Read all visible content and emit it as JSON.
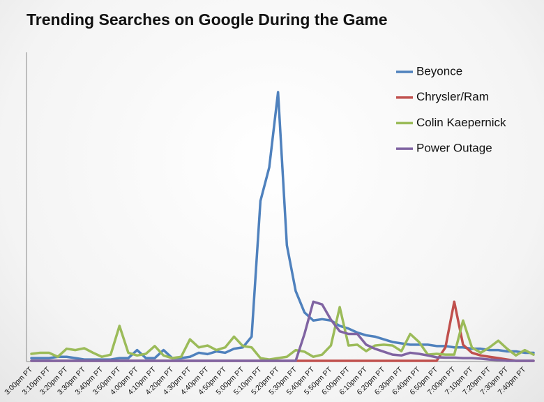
{
  "chart_data": {
    "type": "line",
    "title": "Trending Searches on Google During the Game",
    "categories": [
      "3:00pm PT",
      null,
      "3:10pm PT",
      null,
      "3:20pm PT",
      null,
      "3:30pm PT",
      null,
      "3:40pm PT",
      null,
      "3:50pm PT",
      null,
      "4:00pm PT",
      null,
      "4:10pm PT",
      null,
      "4:20pm PT",
      null,
      "4:30pm PT",
      null,
      "4:40pm PT",
      null,
      "4:50pm PT",
      null,
      "5:00pm PT",
      null,
      "5:10pm PT",
      null,
      "5:20pm PT",
      null,
      "5:30pm PT",
      null,
      "5:40pm PT",
      null,
      "5:50pm PT",
      null,
      "6:00pm PT",
      null,
      "6:10pm PT",
      null,
      "6:20pm PT",
      null,
      "6:30pm PT",
      null,
      "6:40pm PT",
      null,
      "6:50pm PT",
      null,
      "7:00pm PT",
      null,
      "7:10pm PT",
      null,
      "7:20pm PT",
      null,
      "7:30pm PT",
      null,
      "7:40pm PT",
      null
    ],
    "series": [
      {
        "name": "Beyonce",
        "color": "#4f81bd",
        "values": [
          1,
          1,
          1,
          1.5,
          1.5,
          1,
          0.5,
          0.5,
          0.5,
          0.5,
          1,
          1,
          4,
          1,
          1,
          4,
          1,
          1,
          1.5,
          3,
          2.5,
          3.5,
          3,
          4.5,
          5,
          9,
          59.5,
          72,
          100,
          43,
          26,
          18,
          15,
          15.5,
          15,
          13,
          12,
          10.5,
          9.5,
          9,
          8,
          7,
          6.5,
          6,
          6,
          6,
          5.5,
          5.5,
          5,
          5,
          4.5,
          4.5,
          4,
          4,
          3.5,
          3.5,
          3,
          3
        ]
      },
      {
        "name": "Chrysler/Ram",
        "color": "#c0504d",
        "values": [
          0,
          0,
          0,
          0,
          0,
          0,
          0,
          0,
          0,
          0,
          0,
          0,
          0,
          0,
          0,
          0,
          0,
          0,
          0,
          0,
          0,
          0,
          0,
          0,
          0,
          0,
          0,
          0,
          0,
          0,
          0,
          0,
          0,
          0,
          0,
          0,
          0,
          0,
          0,
          0,
          0,
          0,
          0,
          0,
          0,
          0,
          0,
          5,
          22,
          6,
          3,
          2,
          1.5,
          1,
          0.5,
          0,
          0,
          0
        ]
      },
      {
        "name": "Colin Kaepernick",
        "color": "#9bbb59",
        "values": [
          2.6,
          3,
          3,
          1.5,
          4.5,
          4,
          4.7,
          3,
          1.5,
          2.3,
          13,
          3,
          2,
          2.6,
          5.5,
          2,
          1,
          1.5,
          8,
          5,
          5.7,
          4,
          5,
          9,
          5.5,
          5,
          1,
          0.5,
          1,
          1.5,
          4,
          3.4,
          1.5,
          2.3,
          5.7,
          20,
          5.7,
          6,
          3.6,
          5.7,
          6,
          5.7,
          3.6,
          10,
          7,
          2.3,
          2.6,
          2.3,
          2.3,
          15,
          5,
          3,
          5,
          7.5,
          4.5,
          2,
          4,
          2.3
        ]
      },
      {
        "name": "Power Outage",
        "color": "#8064a2",
        "values": [
          0,
          0,
          0,
          0,
          0,
          0,
          0,
          0,
          0,
          0,
          0,
          0,
          0,
          0,
          0,
          0,
          0,
          0,
          0,
          0,
          0,
          0,
          0,
          0,
          0,
          0,
          0,
          0,
          0,
          0,
          0,
          10,
          22,
          21,
          15.3,
          11,
          10,
          10,
          6,
          4.5,
          3.4,
          2.3,
          2,
          3,
          2.6,
          2,
          1.3,
          1.2,
          1.2,
          1,
          1,
          0.8,
          0.5,
          0.3,
          0,
          0,
          0,
          0
        ]
      }
    ],
    "ylim": [
      0,
      100
    ],
    "legend": "top-right"
  }
}
